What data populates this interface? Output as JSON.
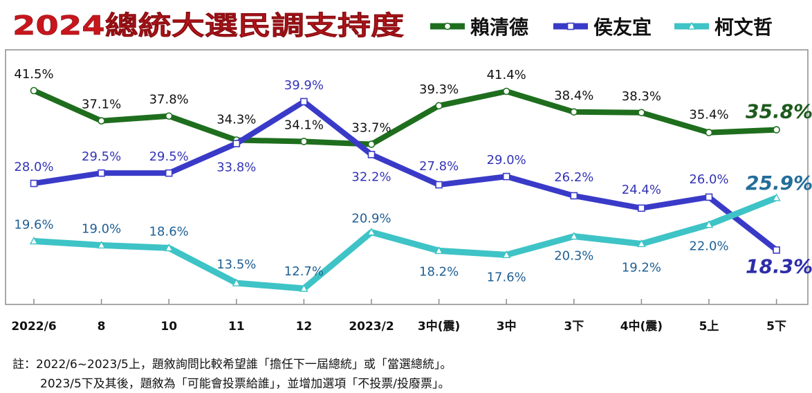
{
  "chart_data": {
    "type": "line",
    "title": "2024總統大選民調支持度",
    "categories": [
      "2022/6",
      "8",
      "10",
      "11",
      "12",
      "2023/2",
      "3中(震)",
      "3中",
      "3下",
      "4中(震)",
      "5上",
      "5下"
    ],
    "series": [
      {
        "name": "賴清德",
        "color": "#1e6e1e",
        "values": [
          41.5,
          37.1,
          37.8,
          34.3,
          34.1,
          33.7,
          39.3,
          41.4,
          38.4,
          38.3,
          35.4,
          35.8
        ]
      },
      {
        "name": "侯友宜",
        "color": "#3a3ac8",
        "values": [
          28.0,
          29.5,
          29.5,
          33.8,
          39.9,
          32.2,
          27.8,
          29.0,
          26.2,
          24.4,
          26.0,
          18.3
        ]
      },
      {
        "name": "柯文哲",
        "color": "#3ec3c6",
        "values": [
          19.6,
          19.0,
          18.6,
          13.5,
          12.7,
          20.9,
          18.2,
          17.6,
          20.3,
          19.2,
          22.0,
          25.9
        ]
      }
    ],
    "labels": [
      [
        "41.5%",
        "37.1%",
        "37.8%",
        "34.3%",
        "34.1%",
        "33.7%",
        "39.3%",
        "41.4%",
        "38.4%",
        "38.3%",
        "35.4%",
        "35.8%"
      ],
      [
        "28.0%",
        "29.5%",
        "29.5%",
        "33.8%",
        "39.9%",
        "32.2%",
        "27.8%",
        "29.0%",
        "26.2%",
        "24.4%",
        "26.0%",
        "18.3%"
      ],
      [
        "19.6%",
        "19.0%",
        "18.6%",
        "13.5%",
        "12.7%",
        "20.9%",
        "18.2%",
        "17.6%",
        "20.3%",
        "19.2%",
        "22.0%",
        "25.9%"
      ]
    ],
    "xlabel": "",
    "ylabel": "",
    "ylim": [
      9,
      46
    ],
    "grid": false,
    "legend": "top-right"
  },
  "notes": {
    "line1": "註：2022/6~2023/5上，題敘詢問比較希望誰「擔任下一屆總統」或「當選總統」。",
    "line2": "2023/5下及其後，題敘為「可能會投票給誰」，並增加選項「不投票/投廢票」。"
  }
}
